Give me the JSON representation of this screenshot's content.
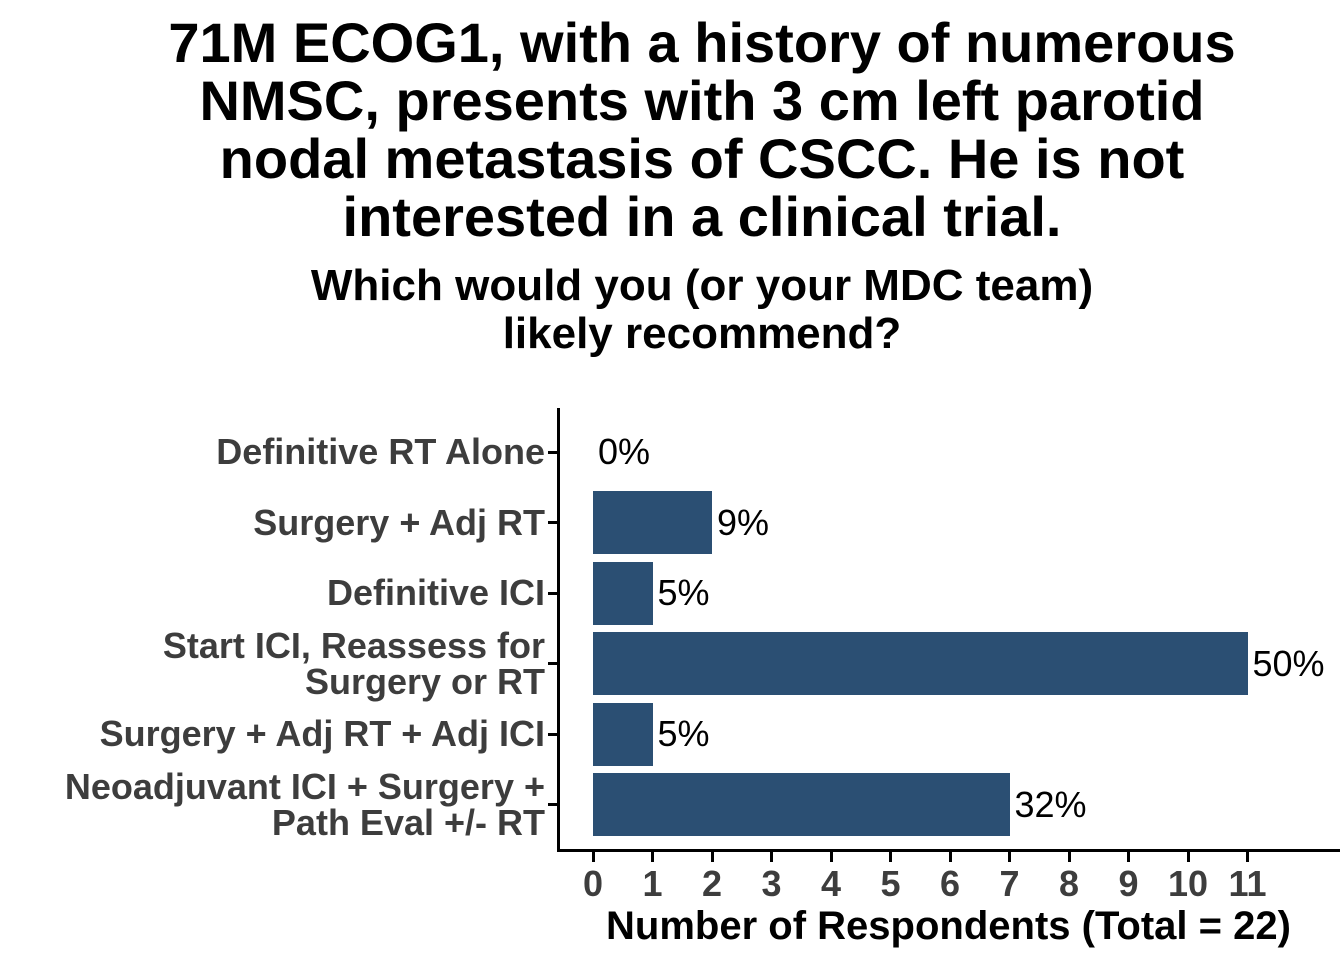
{
  "title_lines": [
    "71M ECOG1, with a history of numerous",
    "NMSC, presents with 3 cm left parotid",
    "nodal metastasis of CSCC. He is not",
    "interested in a clinical trial."
  ],
  "subtitle_lines": [
    "Which would you (or your MDC team)",
    "likely recommend?"
  ],
  "chart_data": {
    "type": "bar",
    "orientation": "horizontal",
    "title": "71M ECOG1, with a history of numerous NMSC, presents with 3 cm left parotid nodal metastasis of CSCC. He is not interested in a clinical trial.",
    "subtitle": "Which would you (or your MDC team) likely recommend?",
    "categories": [
      "Definitive RT Alone",
      "Surgery + Adj RT",
      "Definitive ICI",
      "Start ICI, Reassess for\nSurgery or RT",
      "Surgery + Adj RT + Adj ICI",
      "Neoadjuvant ICI + Surgery +\nPath Eval +/- RT"
    ],
    "values": [
      0,
      2,
      1,
      11,
      1,
      7
    ],
    "bar_labels": [
      "0%",
      "9%",
      "5%",
      "50%",
      "5%",
      "32%"
    ],
    "total_respondents": 22,
    "xlabel": "Number of Respondents (Total = 22)",
    "x_ticks": [
      0,
      1,
      2,
      3,
      4,
      5,
      6,
      7,
      8,
      9,
      10,
      11
    ],
    "xlim": [
      0,
      11
    ],
    "grid": false,
    "legend": false,
    "bar_color": "#2B4F73",
    "tick_label_color": "#3D3D3D",
    "axis_color": "#000000"
  }
}
